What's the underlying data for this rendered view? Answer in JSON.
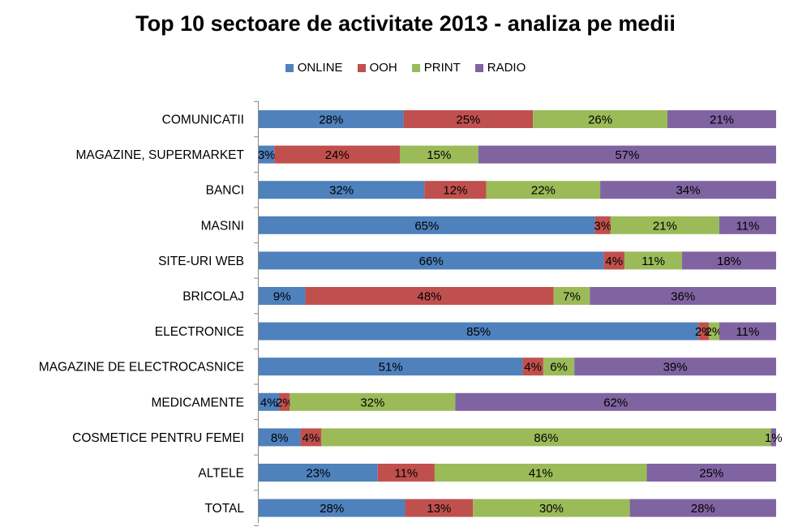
{
  "chart_data": {
    "type": "bar",
    "orientation": "horizontal",
    "stacked": true,
    "title": "Top 10 sectoare de activitate 2013 - analiza pe medii",
    "legend_position": "top",
    "xlim": [
      0,
      100
    ],
    "grid": false,
    "categories": [
      "COMUNICATII",
      "MAGAZINE, SUPERMARKET",
      "BANCI",
      "MASINI",
      "SITE-URI WEB",
      "BRICOLAJ",
      "ELECTRONICE",
      "MAGAZINE DE ELECTROCASNICE",
      "MEDICAMENTE",
      "COSMETICE PENTRU FEMEI",
      "ALTELE",
      "TOTAL"
    ],
    "series": [
      {
        "name": "ONLINE",
        "color": "#4F81BD",
        "values": [
          28,
          3,
          32,
          65,
          66,
          9,
          85,
          51,
          4,
          8,
          23,
          28
        ]
      },
      {
        "name": "OOH",
        "color": "#C0504D",
        "values": [
          25,
          24,
          12,
          3,
          4,
          48,
          2,
          4,
          2,
          4,
          11,
          13
        ]
      },
      {
        "name": "PRINT",
        "color": "#9BBB59",
        "values": [
          26,
          15,
          22,
          21,
          11,
          7,
          2,
          6,
          32,
          86,
          41,
          30
        ]
      },
      {
        "name": "RADIO",
        "color": "#8064A2",
        "values": [
          21,
          57,
          34,
          11,
          18,
          36,
          11,
          39,
          62,
          1,
          25,
          28
        ]
      }
    ],
    "data_label_format": "{v}%"
  }
}
